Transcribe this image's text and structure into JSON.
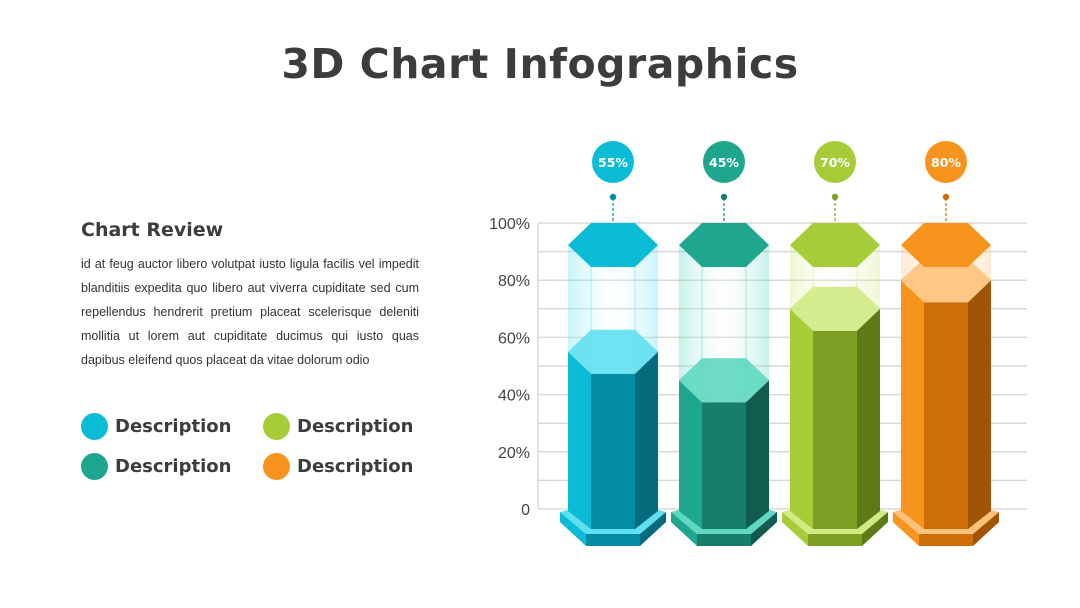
{
  "title": "3D Chart Infographics",
  "review": {
    "heading": "Chart Review",
    "body": "id at feug auctor libero volutpat iusto ligula facilis vel impedit blanditiis expedita quo libero aut viverra cupiditate sed cum repellendus hendrerit pretium placeat scelerisque deleniti mollitia ut lorem aut cupiditate ducimus qui iusto quas dapibus eleifend quos placeat da vitae dolorum odio"
  },
  "legend": [
    {
      "label": "Description",
      "color": "#0bbcd6"
    },
    {
      "label": "Description",
      "color": "#a6cc37"
    },
    {
      "label": "Description",
      "color": "#1fa68f"
    },
    {
      "label": "Description",
      "color": "#f7941d"
    }
  ],
  "chart_data": {
    "type": "bar",
    "style": "3d-hexagonal-cylinders",
    "ylim": [
      0,
      100
    ],
    "yticks": [
      "0",
      "20%",
      "40%",
      "60%",
      "80%",
      "100%"
    ],
    "grid": true,
    "values": [
      55,
      45,
      70,
      80
    ],
    "labels": [
      "55%",
      "45%",
      "70%",
      "80%"
    ],
    "colors": [
      {
        "base": "#0bbcd6",
        "dark": "#028ca3",
        "darker": "#046b7d",
        "light": "#5fe0f0"
      },
      {
        "base": "#1fa68f",
        "dark": "#177e6b",
        "darker": "#105c4f",
        "light": "#5ed8c0"
      },
      {
        "base": "#a6cc37",
        "dark": "#7d9f24",
        "darker": "#5e7a18",
        "light": "#d0ea84"
      },
      {
        "base": "#f7941d",
        "dark": "#cd6f06",
        "darker": "#a05504",
        "light": "#ffc27a"
      }
    ]
  }
}
